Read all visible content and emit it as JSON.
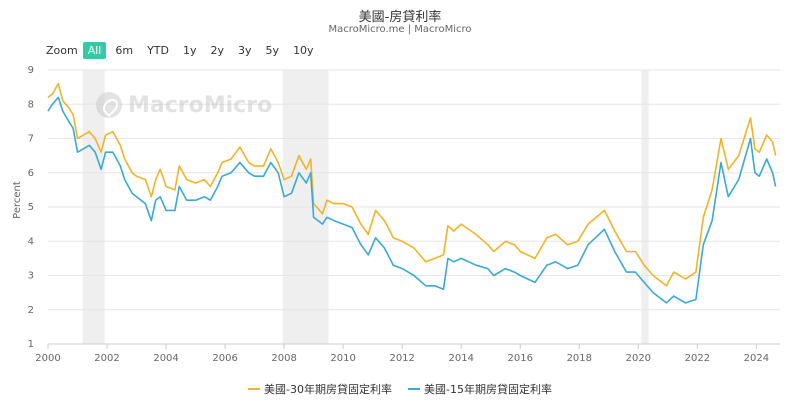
{
  "header": {
    "title": "美國-房貸利率",
    "subtitle": "MacroMicro.me | MacroMicro"
  },
  "zoom": {
    "label": "Zoom",
    "options": [
      "All",
      "6m",
      "YTD",
      "1y",
      "2y",
      "3y",
      "5y",
      "10y"
    ],
    "selected": "All"
  },
  "watermark": {
    "text": "MacroMicro",
    "icon": "macromicro-logo-icon"
  },
  "chart_data": {
    "type": "line",
    "ylabel": "Percent",
    "ylim": [
      1,
      9
    ],
    "yticks": [
      1,
      2,
      3,
      4,
      5,
      6,
      7,
      8,
      9
    ],
    "xlim": [
      2000,
      2024.8
    ],
    "xticks": [
      2000,
      2002,
      2004,
      2006,
      2008,
      2010,
      2012,
      2014,
      2016,
      2018,
      2020,
      2022,
      2024
    ],
    "grid": "horizontal",
    "legend": "bottom",
    "recession_bands": [
      [
        2001.17,
        2001.92
      ],
      [
        2007.95,
        2009.5
      ],
      [
        2020.1,
        2020.35
      ]
    ],
    "series": [
      {
        "name": "美國-30年期房貸固定利率",
        "color": "#f0b429",
        "points": [
          [
            2000.0,
            8.2
          ],
          [
            2000.15,
            8.3
          ],
          [
            2000.35,
            8.6
          ],
          [
            2000.5,
            8.1
          ],
          [
            2000.7,
            7.9
          ],
          [
            2000.85,
            7.7
          ],
          [
            2001.0,
            7.0
          ],
          [
            2001.2,
            7.1
          ],
          [
            2001.4,
            7.2
          ],
          [
            2001.6,
            7.0
          ],
          [
            2001.8,
            6.6
          ],
          [
            2001.95,
            7.1
          ],
          [
            2002.2,
            7.2
          ],
          [
            2002.45,
            6.8
          ],
          [
            2002.6,
            6.4
          ],
          [
            2002.85,
            6.0
          ],
          [
            2003.0,
            5.9
          ],
          [
            2003.3,
            5.8
          ],
          [
            2003.5,
            5.3
          ],
          [
            2003.65,
            5.8
          ],
          [
            2003.8,
            6.1
          ],
          [
            2004.0,
            5.6
          ],
          [
            2004.3,
            5.5
          ],
          [
            2004.45,
            6.2
          ],
          [
            2004.7,
            5.8
          ],
          [
            2005.0,
            5.7
          ],
          [
            2005.3,
            5.8
          ],
          [
            2005.5,
            5.6
          ],
          [
            2005.75,
            6.0
          ],
          [
            2005.9,
            6.3
          ],
          [
            2006.2,
            6.4
          ],
          [
            2006.5,
            6.75
          ],
          [
            2006.8,
            6.3
          ],
          [
            2007.0,
            6.2
          ],
          [
            2007.3,
            6.2
          ],
          [
            2007.55,
            6.7
          ],
          [
            2007.8,
            6.3
          ],
          [
            2008.0,
            5.8
          ],
          [
            2008.25,
            5.9
          ],
          [
            2008.5,
            6.5
          ],
          [
            2008.75,
            6.1
          ],
          [
            2008.9,
            6.4
          ],
          [
            2009.0,
            5.1
          ],
          [
            2009.3,
            4.8
          ],
          [
            2009.45,
            5.2
          ],
          [
            2009.7,
            5.1
          ],
          [
            2010.0,
            5.1
          ],
          [
            2010.3,
            5.0
          ],
          [
            2010.6,
            4.5
          ],
          [
            2010.85,
            4.2
          ],
          [
            2011.1,
            4.9
          ],
          [
            2011.4,
            4.6
          ],
          [
            2011.7,
            4.1
          ],
          [
            2012.0,
            4.0
          ],
          [
            2012.4,
            3.8
          ],
          [
            2012.8,
            3.4
          ],
          [
            2013.1,
            3.5
          ],
          [
            2013.4,
            3.6
          ],
          [
            2013.55,
            4.45
          ],
          [
            2013.75,
            4.3
          ],
          [
            2014.0,
            4.5
          ],
          [
            2014.5,
            4.2
          ],
          [
            2014.9,
            3.9
          ],
          [
            2015.1,
            3.7
          ],
          [
            2015.5,
            4.0
          ],
          [
            2015.8,
            3.9
          ],
          [
            2016.0,
            3.7
          ],
          [
            2016.5,
            3.5
          ],
          [
            2016.9,
            4.1
          ],
          [
            2017.2,
            4.2
          ],
          [
            2017.6,
            3.9
          ],
          [
            2017.95,
            4.0
          ],
          [
            2018.3,
            4.5
          ],
          [
            2018.85,
            4.9
          ],
          [
            2019.2,
            4.3
          ],
          [
            2019.6,
            3.7
          ],
          [
            2019.9,
            3.7
          ],
          [
            2020.2,
            3.3
          ],
          [
            2020.5,
            3.0
          ],
          [
            2020.95,
            2.7
          ],
          [
            2021.2,
            3.1
          ],
          [
            2021.6,
            2.9
          ],
          [
            2021.95,
            3.1
          ],
          [
            2022.2,
            4.7
          ],
          [
            2022.5,
            5.5
          ],
          [
            2022.8,
            7.0
          ],
          [
            2023.05,
            6.1
          ],
          [
            2023.4,
            6.5
          ],
          [
            2023.8,
            7.6
          ],
          [
            2023.95,
            6.7
          ],
          [
            2024.1,
            6.6
          ],
          [
            2024.35,
            7.1
          ],
          [
            2024.55,
            6.9
          ],
          [
            2024.65,
            6.5
          ]
        ]
      },
      {
        "name": "美國-15年期房貸固定利率",
        "color": "#3ba9d3",
        "points": [
          [
            2000.0,
            7.8
          ],
          [
            2000.15,
            8.0
          ],
          [
            2000.35,
            8.2
          ],
          [
            2000.5,
            7.8
          ],
          [
            2000.7,
            7.5
          ],
          [
            2000.85,
            7.3
          ],
          [
            2001.0,
            6.6
          ],
          [
            2001.2,
            6.7
          ],
          [
            2001.4,
            6.8
          ],
          [
            2001.6,
            6.6
          ],
          [
            2001.8,
            6.1
          ],
          [
            2001.95,
            6.6
          ],
          [
            2002.2,
            6.6
          ],
          [
            2002.45,
            6.2
          ],
          [
            2002.6,
            5.8
          ],
          [
            2002.85,
            5.4
          ],
          [
            2003.0,
            5.3
          ],
          [
            2003.3,
            5.1
          ],
          [
            2003.5,
            4.6
          ],
          [
            2003.65,
            5.2
          ],
          [
            2003.8,
            5.3
          ],
          [
            2004.0,
            4.9
          ],
          [
            2004.3,
            4.9
          ],
          [
            2004.45,
            5.6
          ],
          [
            2004.7,
            5.2
          ],
          [
            2005.0,
            5.2
          ],
          [
            2005.3,
            5.3
          ],
          [
            2005.5,
            5.2
          ],
          [
            2005.75,
            5.6
          ],
          [
            2005.9,
            5.9
          ],
          [
            2006.2,
            6.0
          ],
          [
            2006.5,
            6.3
          ],
          [
            2006.8,
            6.0
          ],
          [
            2007.0,
            5.9
          ],
          [
            2007.3,
            5.9
          ],
          [
            2007.55,
            6.3
          ],
          [
            2007.8,
            6.0
          ],
          [
            2008.0,
            5.3
          ],
          [
            2008.25,
            5.4
          ],
          [
            2008.5,
            6.0
          ],
          [
            2008.75,
            5.7
          ],
          [
            2008.9,
            6.0
          ],
          [
            2009.0,
            4.7
          ],
          [
            2009.3,
            4.5
          ],
          [
            2009.45,
            4.7
          ],
          [
            2009.7,
            4.6
          ],
          [
            2010.0,
            4.5
          ],
          [
            2010.3,
            4.4
          ],
          [
            2010.6,
            3.9
          ],
          [
            2010.85,
            3.6
          ],
          [
            2011.1,
            4.1
          ],
          [
            2011.4,
            3.8
          ],
          [
            2011.7,
            3.3
          ],
          [
            2012.0,
            3.2
          ],
          [
            2012.4,
            3.0
          ],
          [
            2012.8,
            2.7
          ],
          [
            2013.1,
            2.7
          ],
          [
            2013.4,
            2.6
          ],
          [
            2013.55,
            3.5
          ],
          [
            2013.75,
            3.4
          ],
          [
            2014.0,
            3.5
          ],
          [
            2014.5,
            3.3
          ],
          [
            2014.9,
            3.2
          ],
          [
            2015.1,
            3.0
          ],
          [
            2015.5,
            3.2
          ],
          [
            2015.8,
            3.1
          ],
          [
            2016.0,
            3.0
          ],
          [
            2016.5,
            2.8
          ],
          [
            2016.9,
            3.3
          ],
          [
            2017.2,
            3.4
          ],
          [
            2017.6,
            3.2
          ],
          [
            2017.95,
            3.3
          ],
          [
            2018.3,
            3.9
          ],
          [
            2018.85,
            4.35
          ],
          [
            2019.2,
            3.7
          ],
          [
            2019.6,
            3.1
          ],
          [
            2019.9,
            3.1
          ],
          [
            2020.2,
            2.8
          ],
          [
            2020.5,
            2.5
          ],
          [
            2020.95,
            2.2
          ],
          [
            2021.2,
            2.4
          ],
          [
            2021.6,
            2.2
          ],
          [
            2021.95,
            2.3
          ],
          [
            2022.2,
            3.9
          ],
          [
            2022.5,
            4.6
          ],
          [
            2022.8,
            6.3
          ],
          [
            2023.05,
            5.3
          ],
          [
            2023.4,
            5.8
          ],
          [
            2023.8,
            7.0
          ],
          [
            2023.95,
            6.0
          ],
          [
            2024.1,
            5.9
          ],
          [
            2024.35,
            6.4
          ],
          [
            2024.55,
            6.0
          ],
          [
            2024.65,
            5.6
          ]
        ]
      }
    ]
  }
}
